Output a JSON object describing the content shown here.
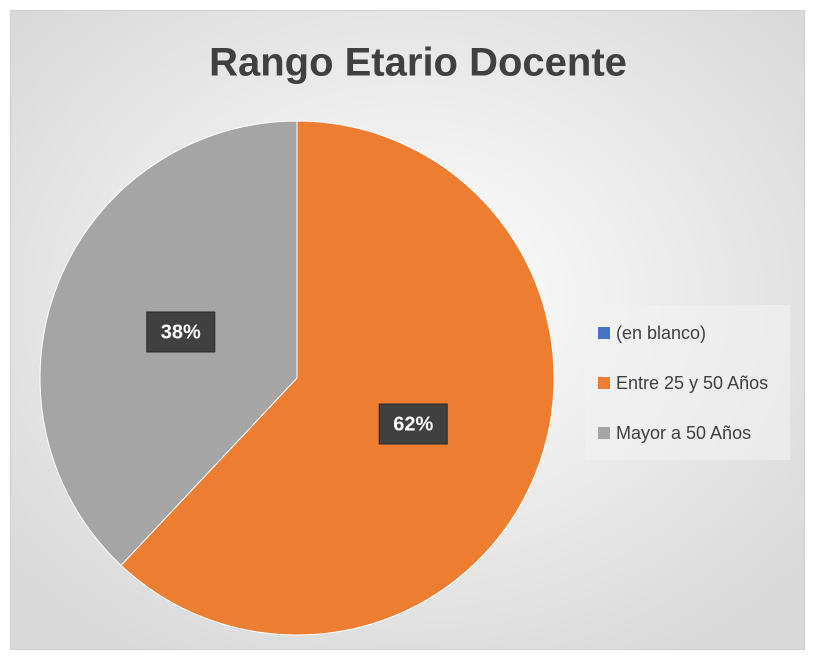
{
  "chart_data": {
    "type": "pie",
    "title": "Rango Etario Docente",
    "categories": [
      "(en blanco)",
      "Entre 25 y 50 Años",
      "Mayor a 50 Años"
    ],
    "values": [
      0,
      62,
      38
    ],
    "value_labels": [
      null,
      "62%",
      "38%"
    ],
    "colors": [
      "#4472c4",
      "#ed7d31",
      "#a5a5a5"
    ],
    "legend": "right"
  }
}
